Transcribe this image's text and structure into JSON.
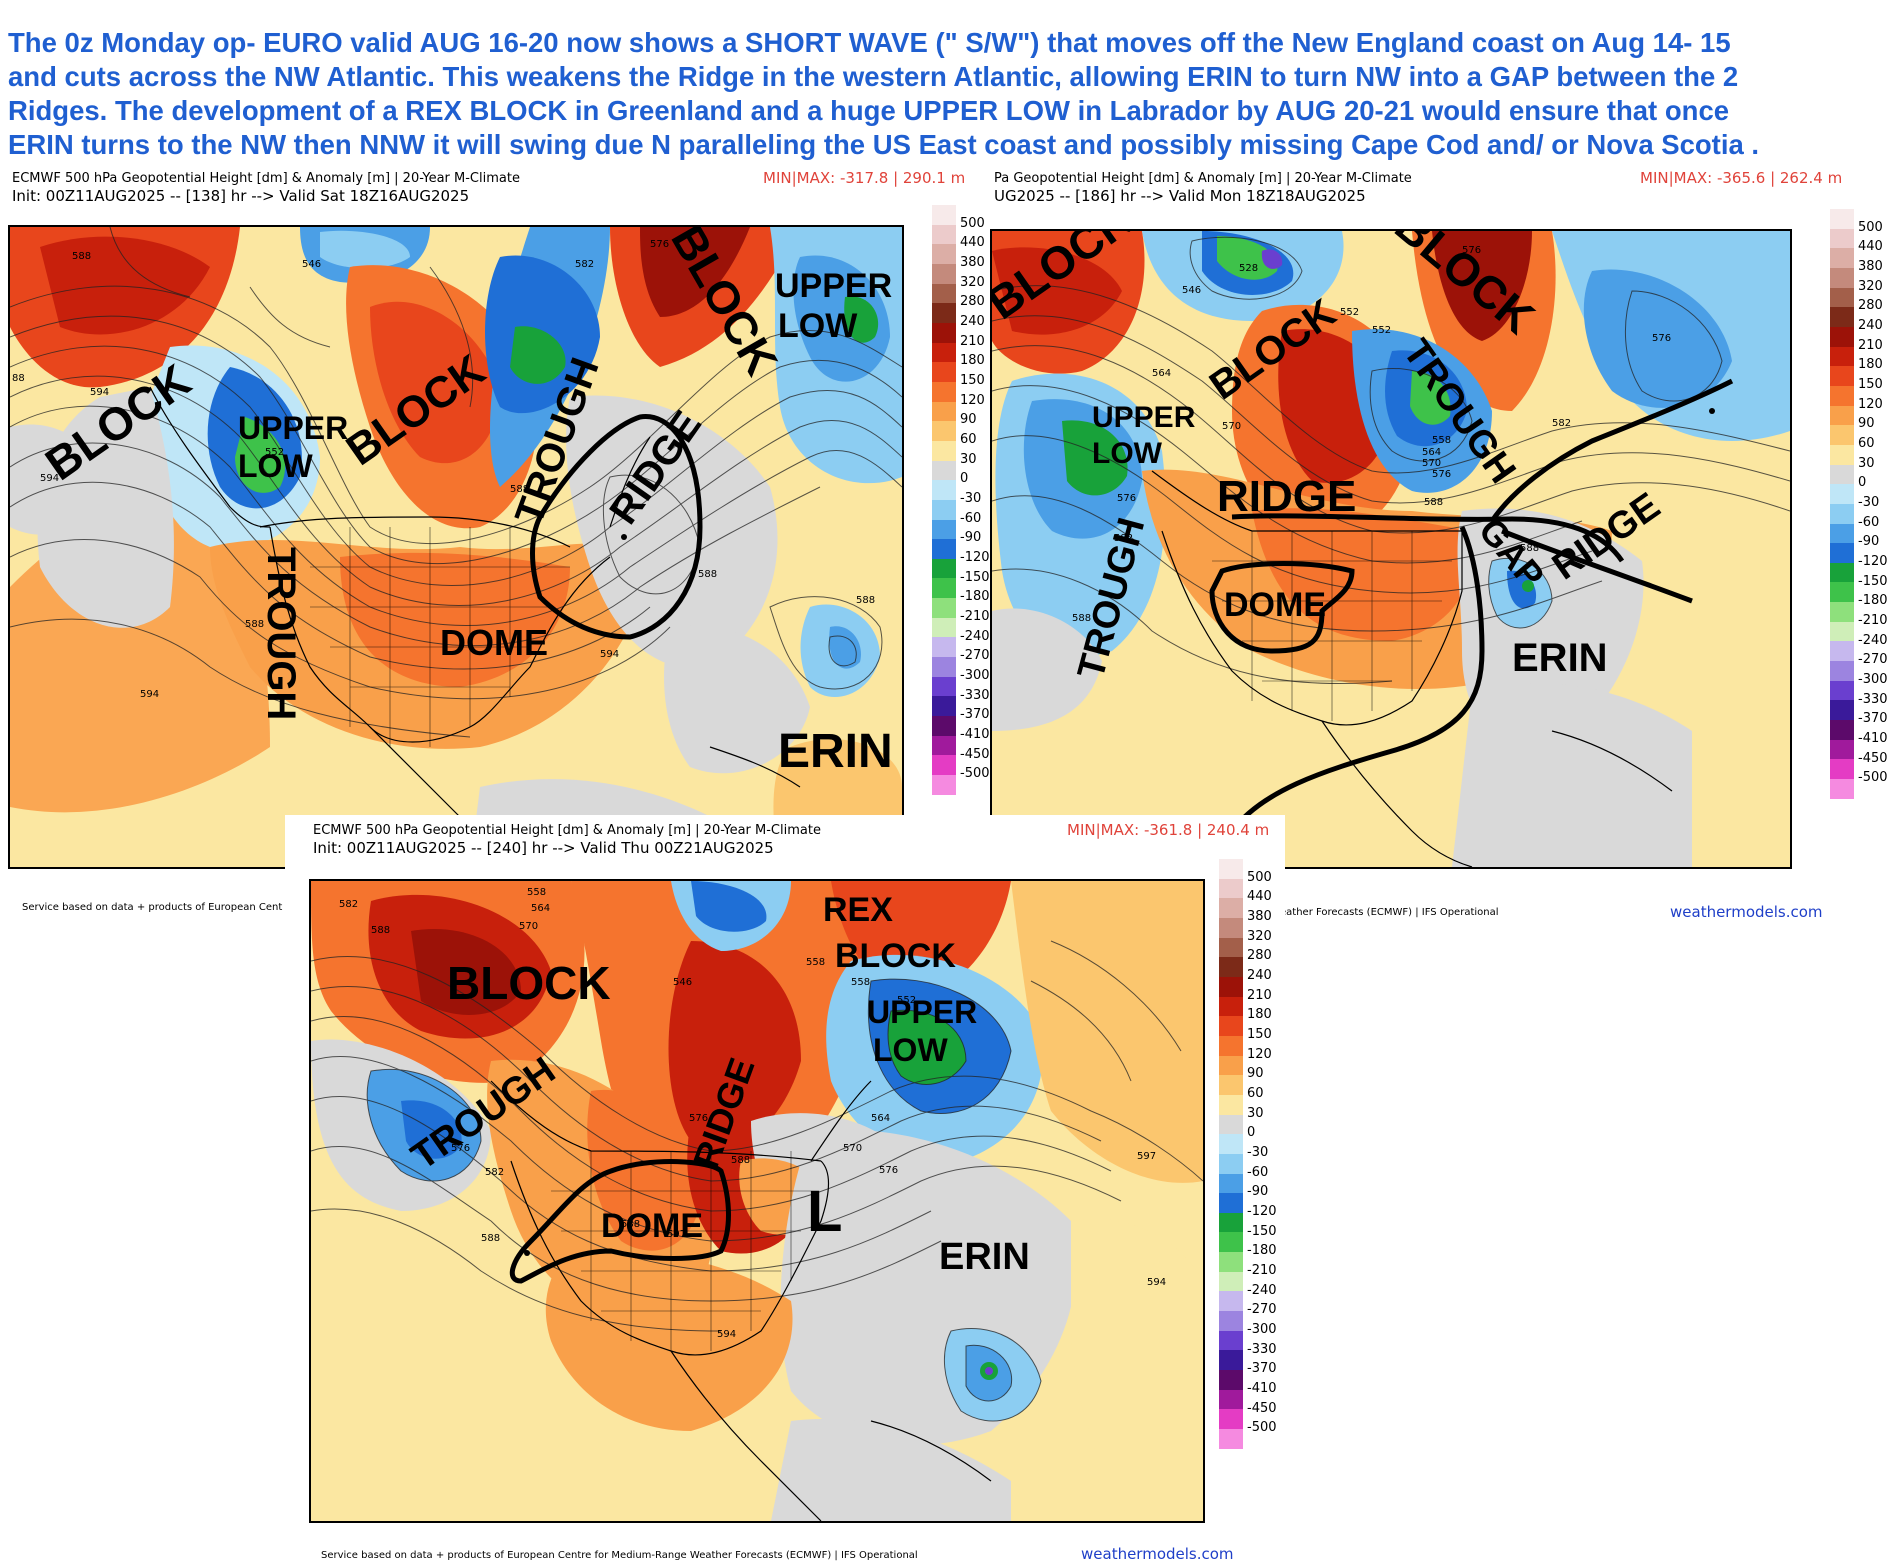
{
  "headline": [
    "The 0z Monday op- EURO valid AUG 16-20 now shows a SHORT WAVE (\" S/W\") that moves off the New England coast on Aug 14- 15",
    "and cuts across the NW Atlantic. This weakens the Ridge in the western Atlantic, allowing ERIN  to turn NW  into a GAP between the  2",
    "Ridges. The  development of a REX  BLOCK in Greenland  and a huge UPPER LOW in  Labrador by AUG 20-21 would ensure that once",
    "ERIN  turns to the NW then NNW  it will swing due N paralleling the US  East coast and possibly missing Cape Cod and/ or Nova Scotia ."
  ],
  "panels": [
    {
      "id": "panel1",
      "title": "ECMWF 500 hPa Geopotential Height [dm] & Anomaly [m] | 20-Year M-Climate",
      "init": "Init: 00Z11AUG2025 -- [138] hr --> Valid Sat 18Z16AUG2025",
      "minmax": "MIN|MAX: -317.8 | 290.1 m",
      "footer": "Service based on data + products of European Cent",
      "labels": [
        "BLOCK",
        "BLOCK",
        "BLOCK",
        "UPPER",
        "LOW",
        "UPPER",
        "LOW",
        "TROUGH",
        "TROUGH",
        "RIDGE",
        "DOME",
        "ERIN"
      ],
      "contours": [
        "588",
        "546",
        "582",
        "576",
        "594",
        "552",
        "588",
        "588",
        "588",
        "594",
        "594",
        "588",
        "588",
        "594",
        "88"
      ]
    },
    {
      "id": "panel2",
      "title": "Pa Geopotential Height [dm] & Anomaly [m] | 20-Year M-Climate",
      "init": "UG2025 -- [186] hr --> Valid Mon 18Z18AUG2025",
      "minmax": "MIN|MAX: -365.6 | 262.4 m",
      "footer": "eather Forecasts (ECMWF) | IFS Operational",
      "watermark": "weathermodels.com",
      "labels": [
        "BLOCK",
        "BLOCK",
        "BLOCK",
        "UPPER",
        "LOW",
        "TROUGH",
        "TROUGH",
        "RIDGE",
        "RIDGE",
        "GAP",
        "DOME",
        "ERIN"
      ],
      "contours": [
        "528",
        "546",
        "552",
        "576",
        "552",
        "576",
        "564",
        "570",
        "576",
        "582",
        "588",
        "558",
        "564",
        "570",
        "576",
        "588",
        "582",
        "588"
      ]
    },
    {
      "id": "panel3",
      "title": "ECMWF 500 hPa Geopotential Height [dm] & Anomaly [m] | 20-Year M-Climate",
      "init": "Init: 00Z11AUG2025 -- [240] hr --> Valid Thu 00Z21AUG2025",
      "minmax": "MIN|MAX: -361.8 | 240.4 m",
      "footer": "Service based on data + products of European Centre for Medium-Range Weather Forecasts (ECMWF) | IFS Operational",
      "watermark": "weathermodels.com",
      "labels": [
        "REX",
        "BLOCK",
        "BLOCK",
        "UPPER",
        "LOW",
        "TROUGH",
        "RIDGE",
        "DOME",
        "L",
        "ERIN"
      ],
      "contours": [
        "582",
        "588",
        "558",
        "564",
        "570",
        "546",
        "558",
        "558",
        "552",
        "576",
        "582",
        "576",
        "564",
        "570",
        "576",
        "588",
        "588",
        "597",
        "594",
        "597",
        "594",
        "588"
      ]
    }
  ],
  "colorbar": {
    "values": [
      "500",
      "440",
      "380",
      "320",
      "280",
      "240",
      "210",
      "180",
      "150",
      "120",
      "90",
      "60",
      "30",
      "0",
      "-30",
      "-60",
      "-90",
      "-120",
      "-150",
      "-180",
      "-210",
      "-240",
      "-270",
      "-300",
      "-330",
      "-370",
      "-410",
      "-450",
      "-500"
    ],
    "colors": [
      "#f7eaea",
      "#eccbcb",
      "#dcaea6",
      "#c48a7c",
      "#a35f4a",
      "#7c2a18",
      "#9c1208",
      "#c8200c",
      "#e8461c",
      "#f5742e",
      "#f9a04a",
      "#fbc66e",
      "#fbe7a1",
      "#d9d9d9",
      "#bfe6f7",
      "#8ccdf2",
      "#4b9fe6",
      "#1f6fd6",
      "#18a23a",
      "#3ec24a",
      "#8ee07c",
      "#cfeeb8",
      "#c6b8ee",
      "#9c84e0",
      "#6a3fcf",
      "#3a1a9a",
      "#5c0a6a",
      "#a01a9c",
      "#e43cc4",
      "#f58ae0"
    ]
  }
}
